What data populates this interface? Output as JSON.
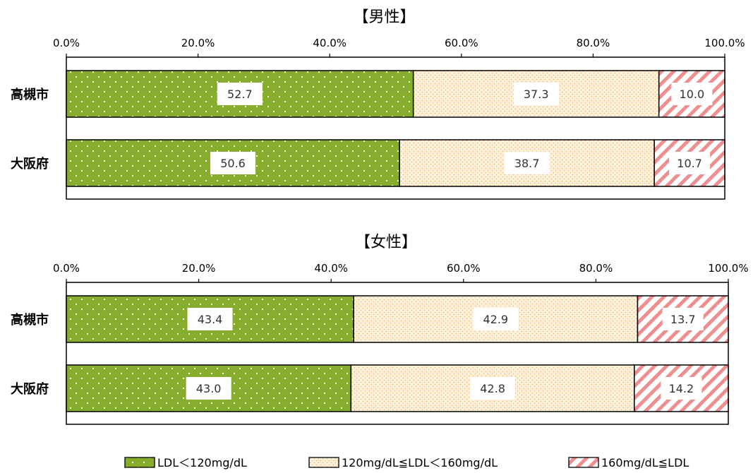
{
  "chart_data": [
    {
      "type": "bar",
      "orientation": "horizontal",
      "stacked": true,
      "title": "【男性】",
      "categories": [
        "高槻市",
        "大阪府"
      ],
      "series": [
        {
          "name": "LDL＜120mg/dL",
          "values": [
            52.7,
            50.6
          ]
        },
        {
          "name": "120mg/dL≦LDL＜160mg/dL",
          "values": [
            37.3,
            38.7
          ]
        },
        {
          "name": "160mg/dL≦LDL",
          "values": [
            10.0,
            10.7
          ]
        }
      ],
      "value_labels": [
        [
          "52.7",
          "50.6"
        ],
        [
          "37.3",
          "38.7"
        ],
        [
          "10.0",
          "10.7"
        ]
      ],
      "xlim": [
        0,
        100
      ],
      "tick_labels": [
        "0.0%",
        "20.0%",
        "40.0%",
        "60.0%",
        "80.0%",
        "100.0%"
      ],
      "axis_position": "top",
      "grid": false
    },
    {
      "type": "bar",
      "orientation": "horizontal",
      "stacked": true,
      "title": "【女性】",
      "categories": [
        "高槻市",
        "大阪府"
      ],
      "series": [
        {
          "name": "LDL＜120mg/dL",
          "values": [
            43.4,
            43.0
          ]
        },
        {
          "name": "120mg/dL≦LDL＜160mg/dL",
          "values": [
            42.9,
            42.8
          ]
        },
        {
          "name": "160mg/dL≦LDL",
          "values": [
            13.7,
            14.2
          ]
        }
      ],
      "value_labels": [
        [
          "43.4",
          "43.0"
        ],
        [
          "42.9",
          "42.8"
        ],
        [
          "13.7",
          "14.2"
        ]
      ],
      "xlim": [
        0,
        100
      ],
      "tick_labels": [
        "0.0%",
        "20.0%",
        "40.0%",
        "60.0%",
        "80.0%",
        "100.0%"
      ],
      "axis_position": "top",
      "grid": false
    }
  ],
  "legend": {
    "position": "bottom",
    "items": [
      {
        "label": "LDL＜120mg/dL",
        "pattern": "green-dots"
      },
      {
        "label": "120mg/dL≦LDL＜160mg/dL",
        "pattern": "cream-dots"
      },
      {
        "label": "160mg/dL≦LDL",
        "pattern": "pink-stripes"
      }
    ]
  },
  "colors": {
    "green": "#86ad2c",
    "cream": "#fdf1dc",
    "cream_dot": "#f0b45a",
    "pink": "#ee8f8f",
    "axis": "#000000",
    "label_box": "#ffffff"
  }
}
